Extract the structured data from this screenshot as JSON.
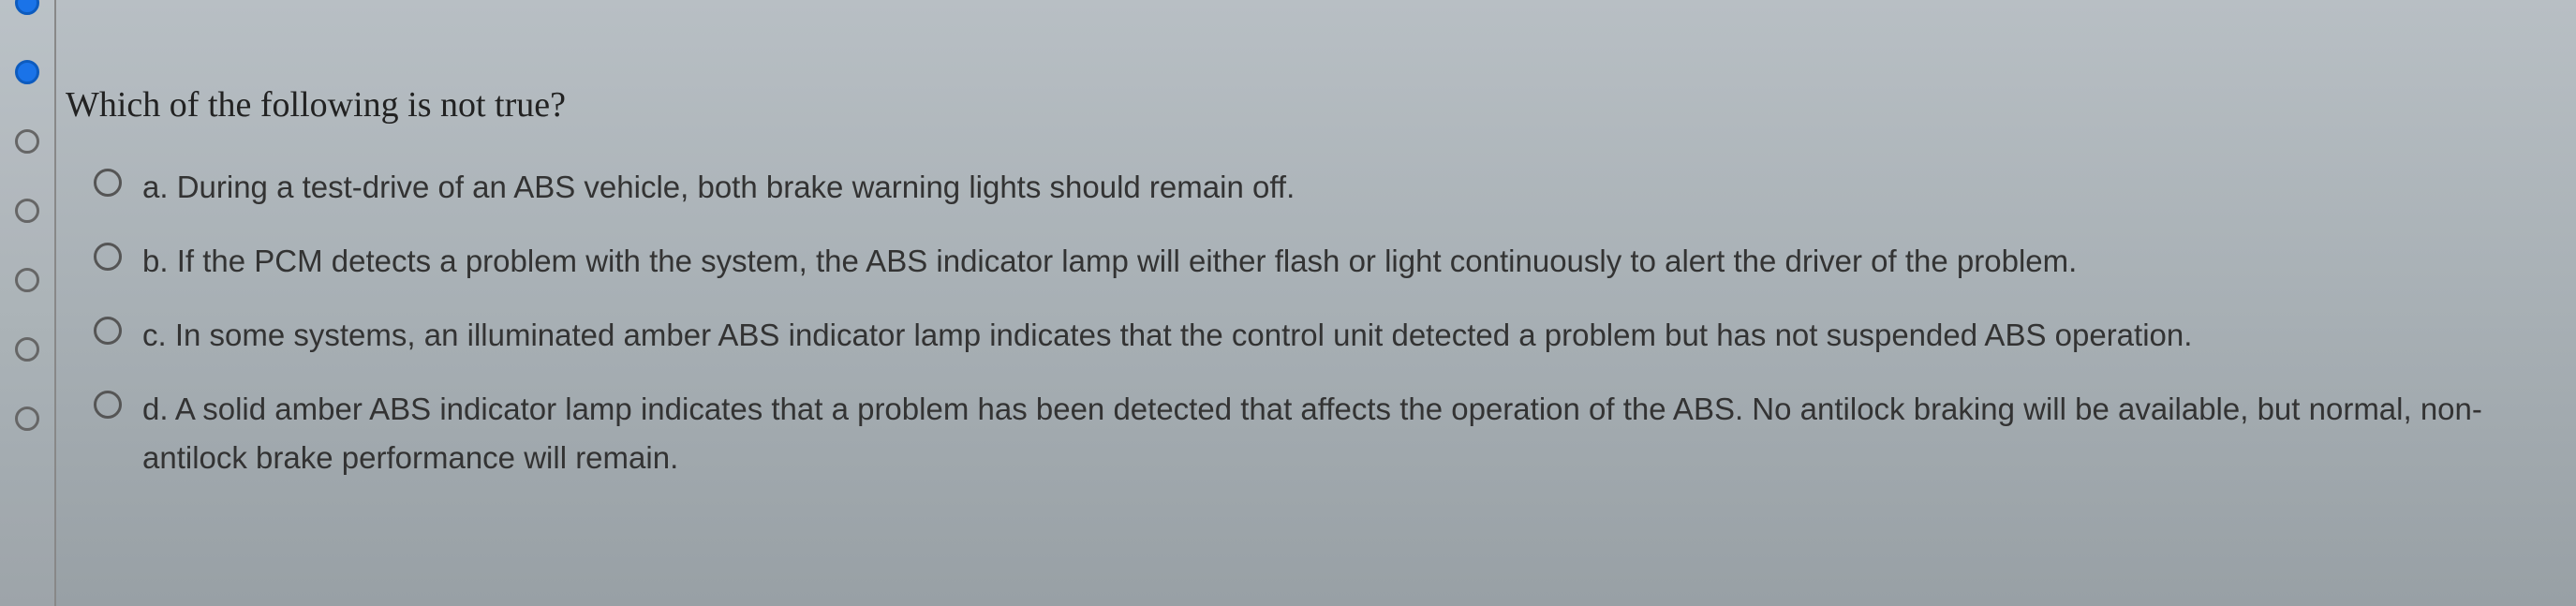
{
  "nav": {
    "dots": [
      {
        "filled": true
      },
      {
        "filled": true
      },
      {
        "filled": false
      },
      {
        "filled": false
      },
      {
        "filled": false
      },
      {
        "filled": false
      },
      {
        "filled": false
      }
    ]
  },
  "question": {
    "prompt": "Which of the following is not true?",
    "options": [
      {
        "label": "a. During a test-drive of an ABS vehicle, both brake warning lights should remain off."
      },
      {
        "label": "b. If the PCM detects a problem with the system, the ABS indicator lamp will either flash or light continuously to alert the driver of the problem."
      },
      {
        "label": "c. In some systems, an illuminated amber ABS indicator lamp indicates that the control unit detected a problem but has not suspended ABS operation."
      },
      {
        "label": "d. A solid amber ABS indicator lamp indicates that a problem has been detected that affects the operation of the ABS. No antilock braking will be available, but normal, non-antilock brake performance will remain."
      }
    ]
  },
  "styling": {
    "background_gradient": [
      "#b8bfc4",
      "#a8b0b5",
      "#98a0a5"
    ],
    "accent_color": "#1a73e8",
    "question_fontsize": 38,
    "option_fontsize": 33,
    "text_color": "#222",
    "option_text_color": "#333",
    "radio_border": "#555",
    "nav_dot_border": "#666"
  }
}
